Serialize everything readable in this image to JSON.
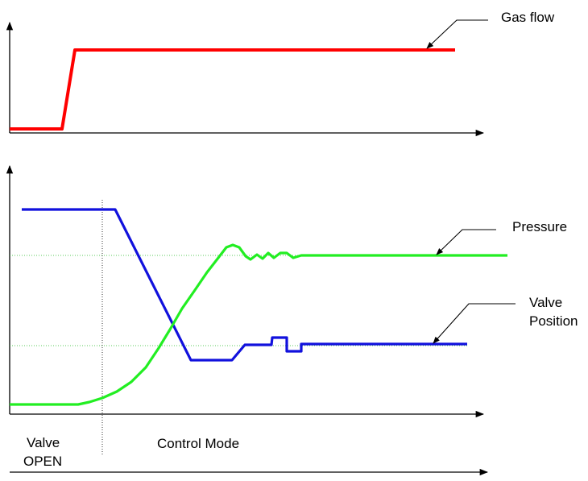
{
  "labels": {
    "gas_flow": "Gas flow",
    "pressure": "Pressure",
    "valve_position_line1": "Valve",
    "valve_position_line2": "Position",
    "valve_open_line1": "Valve",
    "valve_open_line2": "OPEN",
    "control_mode": "Control Mode"
  },
  "colors": {
    "gas_flow": "#ff0000",
    "pressure": "#22ee22",
    "valve_position": "#1111dd",
    "guide_lines": "#22bb22"
  }
}
